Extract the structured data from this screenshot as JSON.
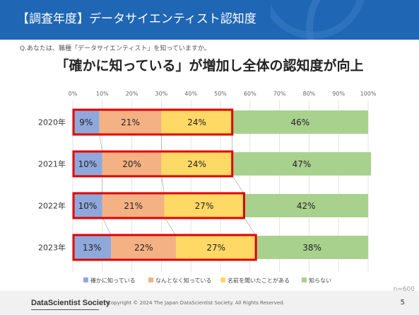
{
  "header": {
    "title": "【調査年度】データサイエンティスト認知度"
  },
  "question": "Q.あなたは、職種「データサイエンティスト」を知っていますか。",
  "headline": "「確かに知っている」が増加し全体の認知度が向上",
  "chart_data": {
    "type": "bar",
    "orientation": "horizontal",
    "stacked": true,
    "percent_stacked": true,
    "categories": [
      "2020年",
      "2021年",
      "2022年",
      "2023年"
    ],
    "series": [
      {
        "name": "確かに知っている",
        "values": [
          9,
          10,
          10,
          13
        ],
        "color": "#8fa8dc"
      },
      {
        "name": "なんとなく知っている",
        "values": [
          21,
          20,
          21,
          22
        ],
        "color": "#f4b183"
      },
      {
        "name": "名前を聞いたことがある",
        "values": [
          24,
          24,
          27,
          27
        ],
        "color": "#ffd966"
      },
      {
        "name": "知らない",
        "values": [
          46,
          47,
          42,
          38
        ],
        "color": "#a9d18e"
      }
    ],
    "x_ticks": [
      "0%",
      "10%",
      "20%",
      "30%",
      "40%",
      "50%",
      "60%",
      "70%",
      "80%",
      "90%",
      "100%"
    ],
    "xlim": [
      0,
      100
    ],
    "grid": true,
    "legend": "bottom",
    "highlight_color": "#e00000",
    "highlight_series_count": 3,
    "note": "n=600"
  },
  "footer": {
    "logo": "DataScientist Society",
    "copyright": "Copyright © 2024 The Japan DataScientist Society. All Rights Reserved.",
    "page": "5"
  }
}
